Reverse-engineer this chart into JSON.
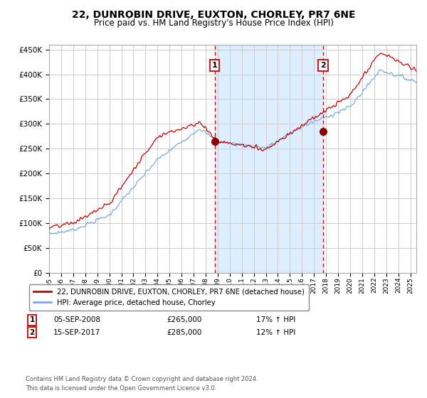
{
  "title": "22, DUNROBIN DRIVE, EUXTON, CHORLEY, PR7 6NE",
  "subtitle": "Price paid vs. HM Land Registry's House Price Index (HPI)",
  "legend_line1": "22, DUNROBIN DRIVE, EUXTON, CHORLEY, PR7 6NE (detached house)",
  "legend_line2": "HPI: Average price, detached house, Chorley",
  "sale1_date": "05-SEP-2008",
  "sale1_price": 265000,
  "sale1_pct": "17% ↑ HPI",
  "sale2_date": "15-SEP-2017",
  "sale2_price": 285000,
  "sale2_pct": "12% ↑ HPI",
  "footnote": "Contains HM Land Registry data © Crown copyright and database right 2024.\nThis data is licensed under the Open Government Licence v3.0.",
  "hpi_color": "#7aaadd",
  "price_color": "#cc0000",
  "marker_color": "#8b0000",
  "vline_color": "#cc0000",
  "shade_color": "#ddeeff",
  "grid_color": "#cccccc",
  "background_color": "#ffffff",
  "ylim": [
    0,
    460000
  ],
  "yticks": [
    0,
    50000,
    100000,
    150000,
    200000,
    250000,
    300000,
    350000,
    400000,
    450000
  ],
  "sale1_year": 2008.75,
  "sale2_year": 2017.75,
  "xlim_start": 1995,
  "xlim_end": 2025.5
}
